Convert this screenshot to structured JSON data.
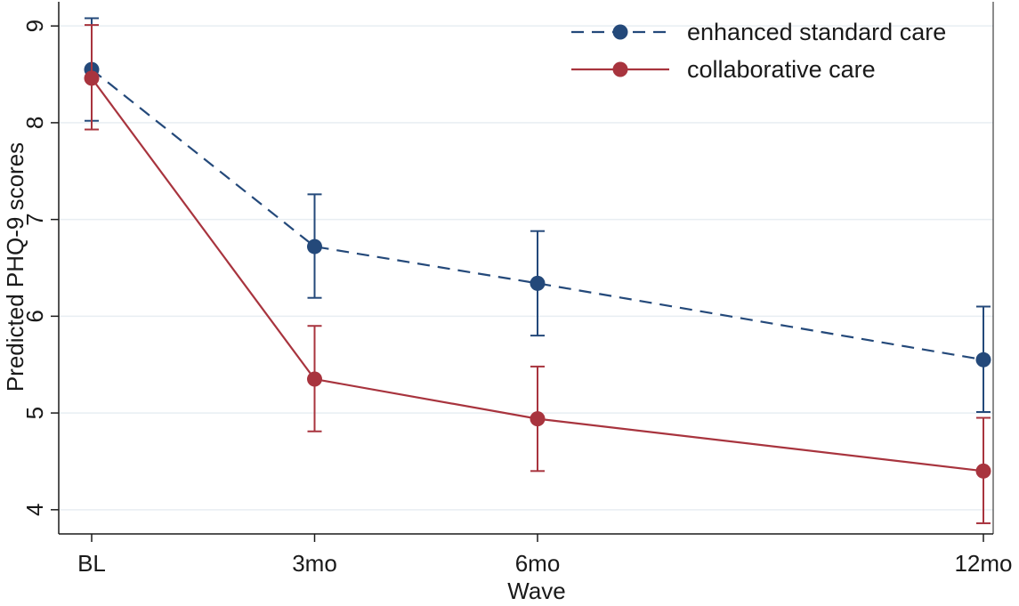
{
  "chart_data": {
    "type": "line",
    "title": "",
    "xlabel": "Wave",
    "ylabel": "Predicted PHQ-9 scores",
    "categories": [
      "BL",
      "3mo",
      "6mo",
      "12mo"
    ],
    "x": [
      0,
      3,
      6,
      12
    ],
    "ylim": [
      3.75,
      9.25
    ],
    "yticks": [
      "4",
      "5",
      "6",
      "7",
      "8",
      "9"
    ],
    "grid": true,
    "legend_position": "top-right",
    "series": [
      {
        "name": "enhanced standard care",
        "values": [
          8.55,
          6.72,
          6.34,
          5.55
        ],
        "ci_lower": [
          8.02,
          6.19,
          5.8,
          5.01
        ],
        "ci_upper": [
          9.08,
          7.26,
          6.88,
          6.1
        ],
        "color": "#24497a",
        "line_style": "dashed"
      },
      {
        "name": "collaborative care",
        "values": [
          8.46,
          5.35,
          4.94,
          4.4
        ],
        "ci_lower": [
          7.93,
          4.81,
          4.4,
          3.86
        ],
        "ci_upper": [
          9.01,
          5.9,
          5.48,
          4.95
        ],
        "color": "#a8343e",
        "line_style": "solid"
      }
    ]
  }
}
